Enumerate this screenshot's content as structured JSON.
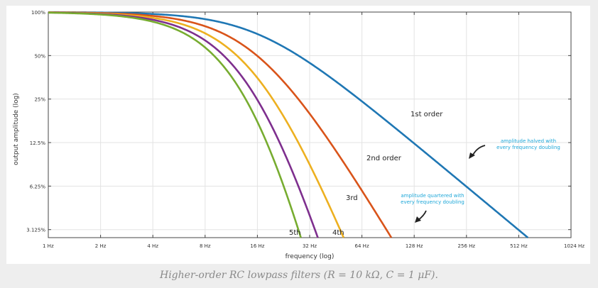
{
  "caption": "Higher-order RC lowpass filters (R = 10 kΩ, C = 1 μF).",
  "chart_data": {
    "type": "line",
    "title": "",
    "xlabel": "frequency (log)",
    "ylabel": "output amplitude (log)",
    "x_scale": "log2",
    "y_scale": "log2",
    "xlim": [
      1,
      1024
    ],
    "ylim": [
      0.0275,
      1.0
    ],
    "grid": true,
    "x_ticks": [
      {
        "value": 1,
        "label": "1 Hz"
      },
      {
        "value": 2,
        "label": "2 Hz"
      },
      {
        "value": 4,
        "label": "4 Hz"
      },
      {
        "value": 8,
        "label": "8 Hz"
      },
      {
        "value": 16,
        "label": "16 Hz"
      },
      {
        "value": 32,
        "label": "32 Hz"
      },
      {
        "value": 64,
        "label": "64 Hz"
      },
      {
        "value": 128,
        "label": "128 Hz"
      },
      {
        "value": 256,
        "label": "256 Hz"
      },
      {
        "value": 512,
        "label": "512 Hz"
      },
      {
        "value": 1024,
        "label": "1024 Hz"
      }
    ],
    "y_ticks": [
      {
        "value": 1.0,
        "label": "100%"
      },
      {
        "value": 0.5,
        "label": "50%"
      },
      {
        "value": 0.25,
        "label": "25%"
      },
      {
        "value": 0.125,
        "label": "12.5%"
      },
      {
        "value": 0.0625,
        "label": "6.25%"
      },
      {
        "value": 0.03125,
        "label": "3.125%"
      }
    ],
    "cutoff_hz": 15.9,
    "series": [
      {
        "name": "1st order",
        "order": 1,
        "color": "#1f77b4"
      },
      {
        "name": "2nd order",
        "order": 2,
        "color": "#d9541a"
      },
      {
        "name": "3rd",
        "order": 3,
        "color": "#edb020"
      },
      {
        "name": "4th",
        "order": 4,
        "color": "#7e2f8e"
      },
      {
        "name": "5th",
        "order": 5,
        "color": "#77ac30"
      }
    ],
    "annotations": [
      {
        "text": [
          "amplitude halved with",
          "every frequency doubling"
        ]
      },
      {
        "text": [
          "amplitude quartered with",
          "every frequency doubling"
        ]
      }
    ]
  }
}
